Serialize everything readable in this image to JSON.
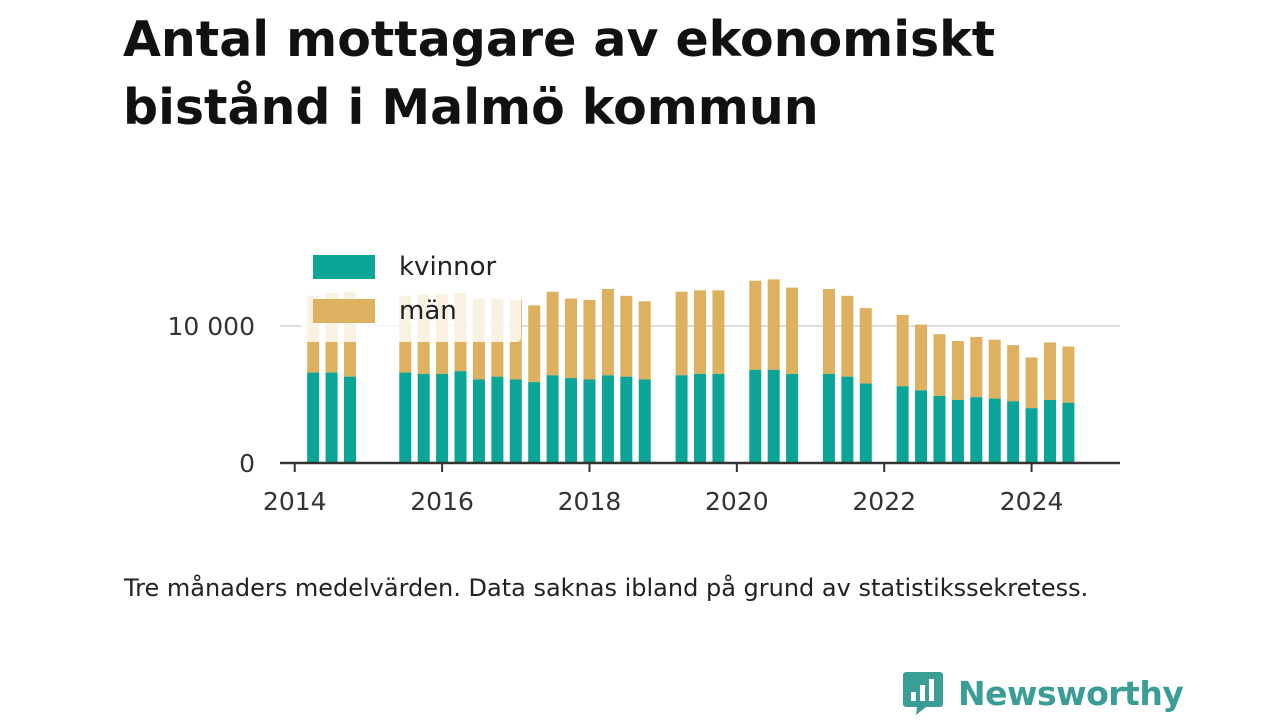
{
  "title": "Antal mottagare av ekonomiskt bistånd i Malmö kommun",
  "note": "Tre månaders medelvärden. Data saknas ibland på grund av statistikssekretess.",
  "brand": {
    "name": "Newsworthy",
    "icon": "newsworthy-logo-icon",
    "color": "#3a9e96"
  },
  "colors": {
    "kvinnor": "#0aa596",
    "man": "#ddb15f",
    "grid": "#dddddd",
    "axis": "#333333"
  },
  "chart_data": {
    "type": "bar",
    "stacked": true,
    "legend_position": "top-left",
    "grid": true,
    "x_ticks": [
      "2014",
      "2016",
      "2018",
      "2020",
      "2022",
      "2024"
    ],
    "y_ticks": [
      {
        "value": 0,
        "label": "0"
      },
      {
        "value": 10000,
        "label": "10 000"
      }
    ],
    "ylim": [
      0,
      13500
    ],
    "xlim": [
      2013.8,
      2025.2
    ],
    "x": [
      2014.25,
      2014.5,
      2014.75,
      2015.5,
      2015.75,
      2016.0,
      2016.25,
      2016.5,
      2016.75,
      2017.0,
      2017.25,
      2017.5,
      2017.75,
      2018.0,
      2018.25,
      2018.5,
      2018.75,
      2019.25,
      2019.5,
      2019.75,
      2020.25,
      2020.5,
      2020.75,
      2021.25,
      2021.5,
      2021.75,
      2022.25,
      2022.5,
      2022.75,
      2023.0,
      2023.25,
      2023.5,
      2023.75,
      2024.0,
      2024.25,
      2024.5
    ],
    "series": [
      {
        "name": "kvinnor",
        "values": [
          6600,
          6600,
          6300,
          6600,
          6500,
          6500,
          6700,
          6100,
          6300,
          6100,
          5900,
          6400,
          6200,
          6100,
          6400,
          6300,
          6100,
          6400,
          6500,
          6500,
          6800,
          6800,
          6500,
          6500,
          6300,
          5800,
          5600,
          5300,
          4900,
          4600,
          4800,
          4700,
          4500,
          4000,
          4600,
          4400
        ]
      },
      {
        "name": "män",
        "values": [
          5600,
          5800,
          6200,
          5600,
          5800,
          5800,
          5700,
          5900,
          5700,
          5800,
          5600,
          6100,
          5800,
          5800,
          6300,
          5900,
          5700,
          6100,
          6100,
          6100,
          6500,
          6600,
          6300,
          6200,
          5900,
          5500,
          5200,
          4800,
          4500,
          4300,
          4400,
          4300,
          4100,
          3700,
          4200,
          4100
        ]
      }
    ]
  }
}
